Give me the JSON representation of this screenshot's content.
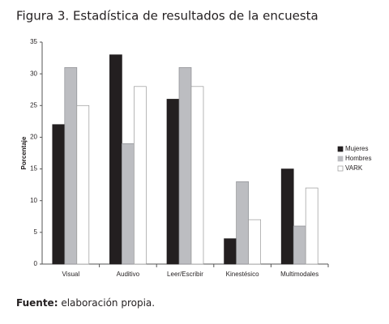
{
  "chart_data": {
    "type": "bar",
    "title": "Figura 3. Estadística de resultados de la encuesta",
    "y_label": "Porcentaje",
    "categories": [
      "Visual",
      "Auditivo",
      "Leer/Escribir",
      "Kinestésico",
      "Multimodales"
    ],
    "series": [
      {
        "name": "Mujeres",
        "color": "#231f20",
        "values": [
          22,
          33,
          26,
          4,
          15
        ]
      },
      {
        "name": "Hombres",
        "color": "#bcbdc1",
        "values": [
          31,
          19,
          31,
          13,
          6
        ]
      },
      {
        "name": "VARK",
        "color": "#ffffff",
        "values": [
          25,
          28,
          28,
          7,
          12
        ]
      }
    ],
    "ylim": [
      0,
      35
    ],
    "yticks": [
      0,
      5,
      10,
      15,
      20,
      25,
      30,
      35
    ],
    "legend": "right",
    "source_label": "Fuente:",
    "source_text": "elaboración propia."
  }
}
